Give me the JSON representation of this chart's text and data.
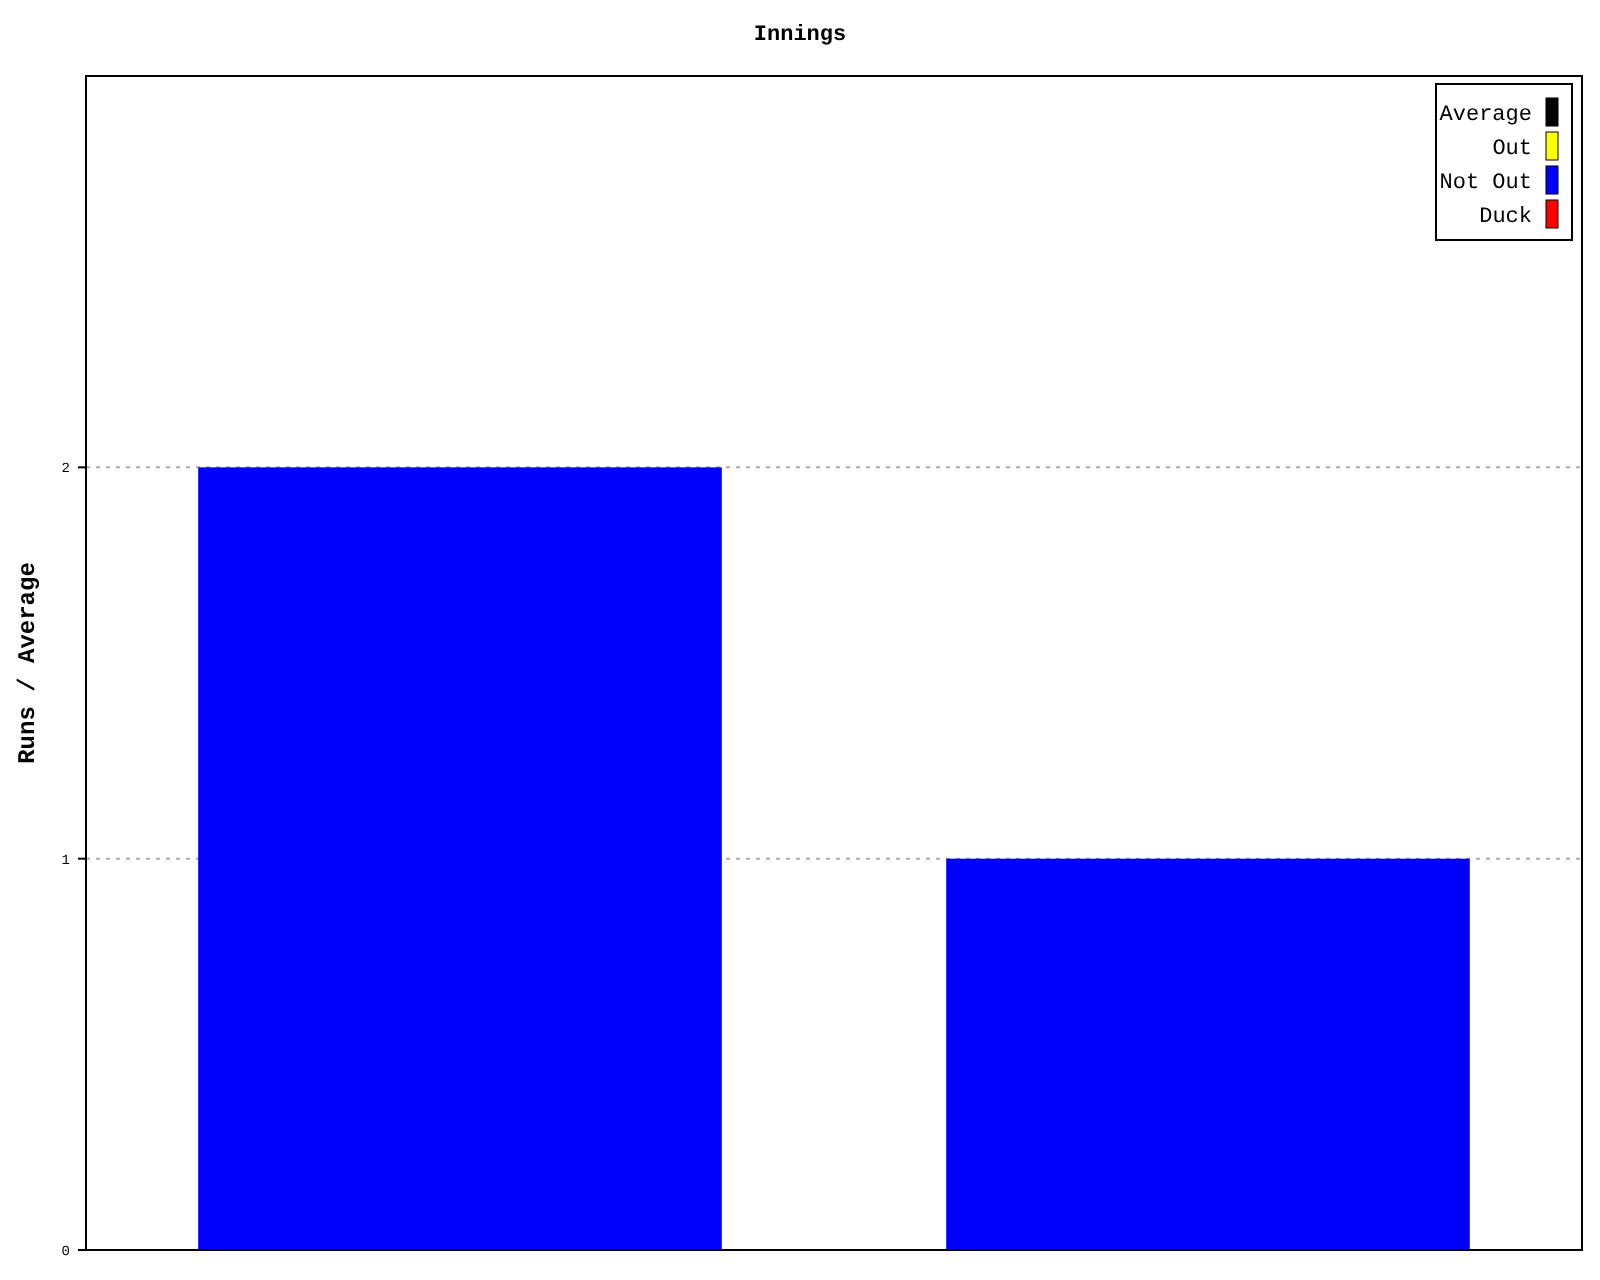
{
  "chart_data": {
    "type": "bar",
    "title": "Innings",
    "ylabel": "Runs / Average",
    "categories": [
      null,
      null
    ],
    "series": [
      {
        "name": "Average",
        "color": "#000000",
        "values": [
          null,
          null
        ]
      },
      {
        "name": "Out",
        "color": "#ffff00",
        "values": [
          null,
          null
        ]
      },
      {
        "name": "Not Out",
        "color": "#0000ff",
        "values": [
          2,
          1
        ]
      },
      {
        "name": "Duck",
        "color": "#ff0000",
        "values": [
          null,
          null
        ]
      }
    ],
    "stacked": true,
    "ylim": [
      0,
      3
    ],
    "yticks": [
      0,
      1,
      2
    ],
    "grid": "y",
    "legend": "top right"
  }
}
